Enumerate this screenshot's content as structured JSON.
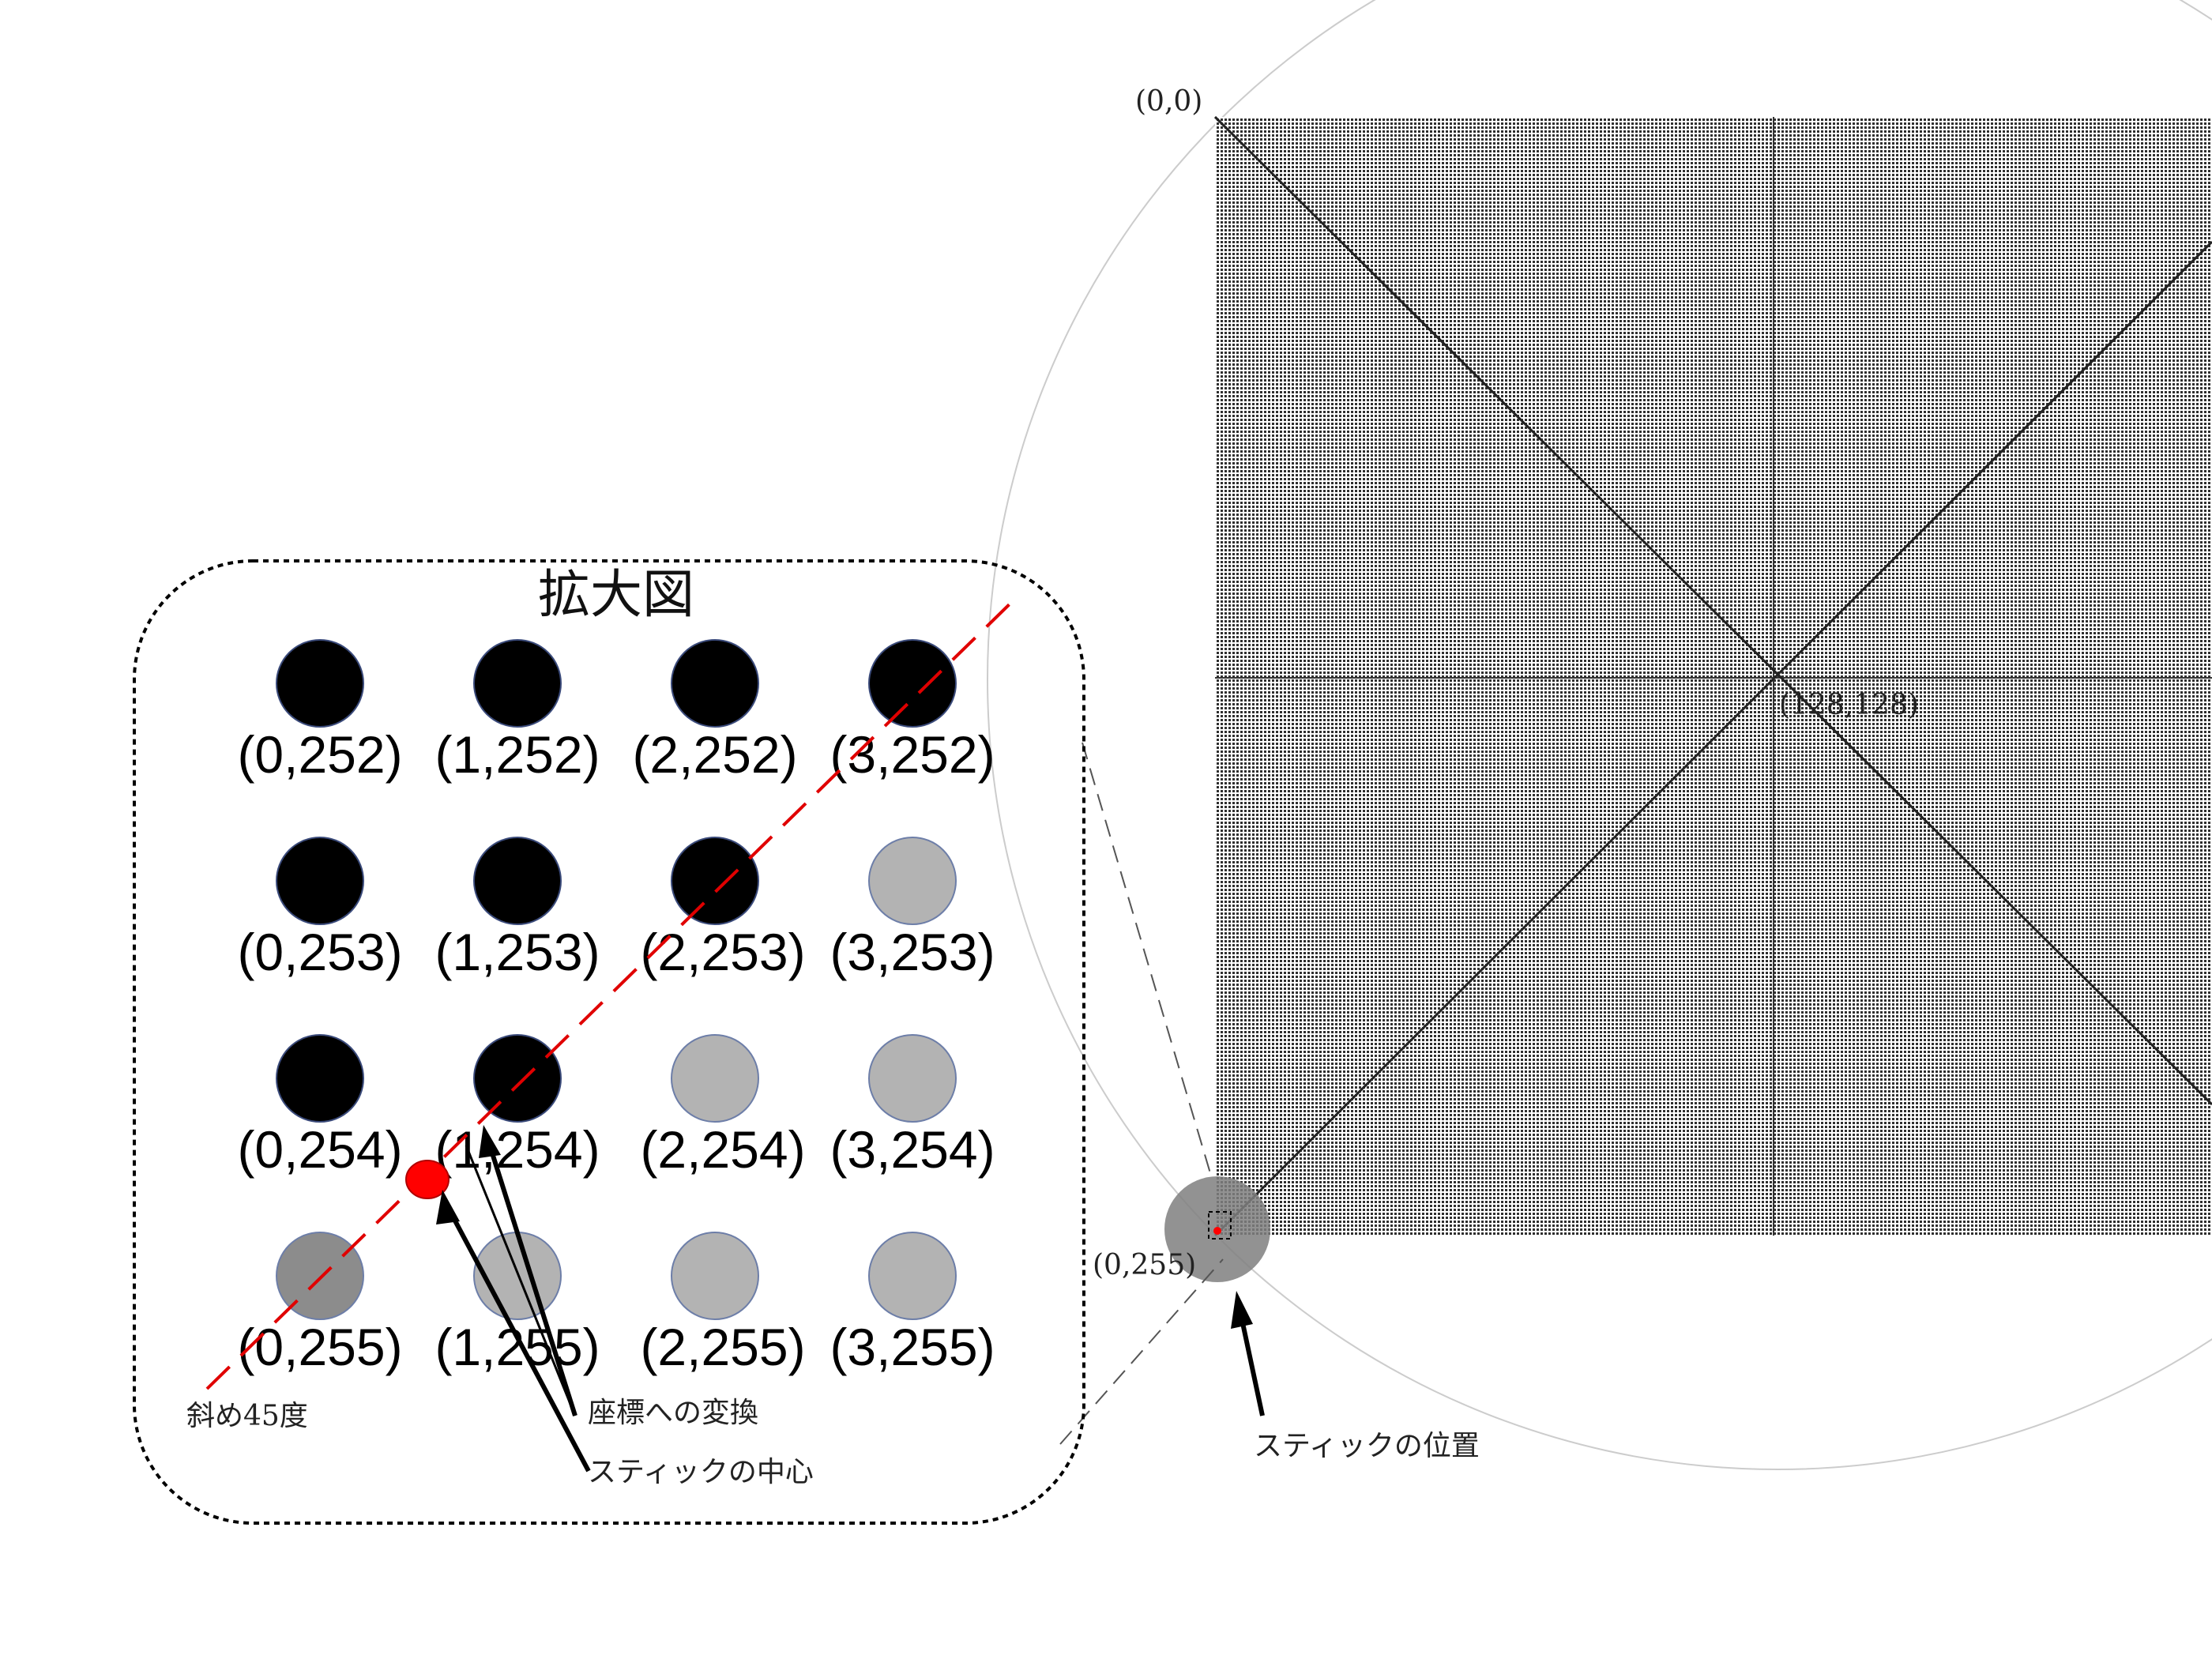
{
  "magnified_view": {
    "title": "拡大図",
    "dots": [
      {
        "label": "(0,252)",
        "state": "black"
      },
      {
        "label": "(1,252)",
        "state": "black"
      },
      {
        "label": "(2,252)",
        "state": "black"
      },
      {
        "label": "(3,252)",
        "state": "black"
      },
      {
        "label": "(0,253)",
        "state": "black"
      },
      {
        "label": "(1,253)",
        "state": "black"
      },
      {
        "label": "(2,253)",
        "state": "black"
      },
      {
        "label": "(3,253)",
        "state": "gray"
      },
      {
        "label": "(0,254)",
        "state": "black"
      },
      {
        "label": "(1,254)",
        "state": "black"
      },
      {
        "label": "(2,254)",
        "state": "gray"
      },
      {
        "label": "(3,254)",
        "state": "gray"
      },
      {
        "label": "(0,255)",
        "state": "darkgray"
      },
      {
        "label": "(1,255)",
        "state": "gray"
      },
      {
        "label": "(2,255)",
        "state": "gray"
      },
      {
        "label": "(3,255)",
        "state": "gray"
      }
    ],
    "diagonal_label": "斜め45度",
    "conversion_label": "座標への変換",
    "stick_center_label": "スティックの中心"
  },
  "grid_view": {
    "corner_top_left": "(0,0)",
    "center": "(128,128)",
    "corner_bottom_left": "(0,255)",
    "stick_position_label": "スティックの位置"
  },
  "colors": {
    "dot_black": "#000000",
    "dot_gray": "#b3b3b3",
    "dot_darkgray": "#8c8c8c",
    "stick_center": "#ff0000",
    "diagonal_line": "#e00000",
    "grid_line": "#333333",
    "circle_outline": "#cccccc"
  }
}
